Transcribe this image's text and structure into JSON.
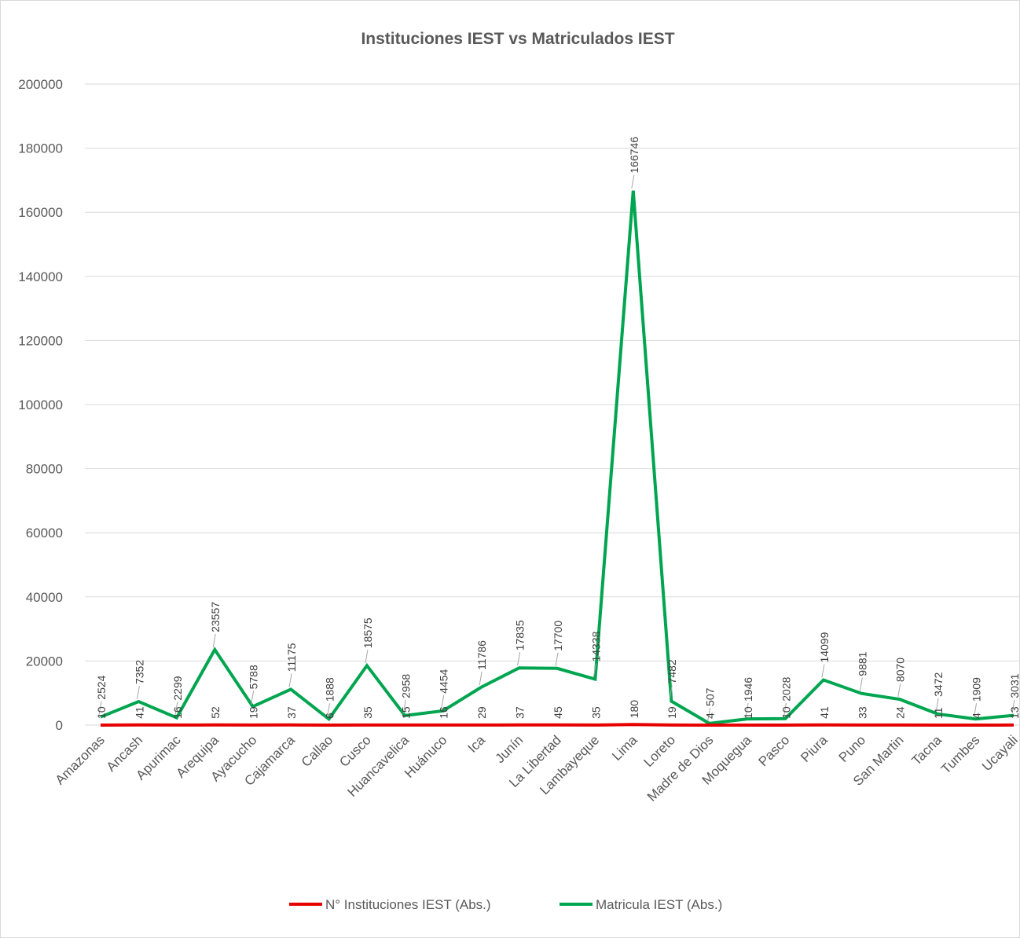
{
  "chart_data": {
    "type": "line",
    "title": "Instituciones IEST vs Matriculados IEST",
    "xlabel": "",
    "ylabel": "",
    "ylim": [
      0,
      200000
    ],
    "yticks": [
      0,
      20000,
      40000,
      60000,
      80000,
      100000,
      120000,
      140000,
      160000,
      180000,
      200000
    ],
    "grid": true,
    "legend_position": "bottom",
    "categories": [
      "Amazonas",
      "Ancash",
      "Apurimac",
      "Arequipa",
      "Ayacucho",
      "Cajamarca",
      "Callao",
      "Cusco",
      "Huancavelica",
      "Huánuco",
      "Ica",
      "Junín",
      "La Libertad",
      "Lambayeque",
      "Lima",
      "Loreto",
      "Madre de Dios",
      "Moquegua",
      "Pasco",
      "Piura",
      "Puno",
      "San Martin",
      "Tacna",
      "Tumbes",
      "Ucayali"
    ],
    "series": [
      {
        "name": "N° Instituciones IEST (Abs.)",
        "color": "#e60000",
        "values": [
          10,
          41,
          16,
          52,
          19,
          37,
          6,
          35,
          15,
          16,
          29,
          37,
          45,
          35,
          180,
          19,
          4,
          10,
          10,
          41,
          33,
          24,
          11,
          4,
          13
        ]
      },
      {
        "name": "Matricula IEST (Abs.)",
        "color": "#00a550",
        "values": [
          2524,
          7352,
          2299,
          23557,
          5788,
          11175,
          1888,
          18575,
          2958,
          4454,
          11786,
          17835,
          17700,
          14338,
          166746,
          7482,
          507,
          1946,
          2028,
          14099,
          9881,
          8070,
          3472,
          1909,
          3031
        ]
      }
    ]
  }
}
